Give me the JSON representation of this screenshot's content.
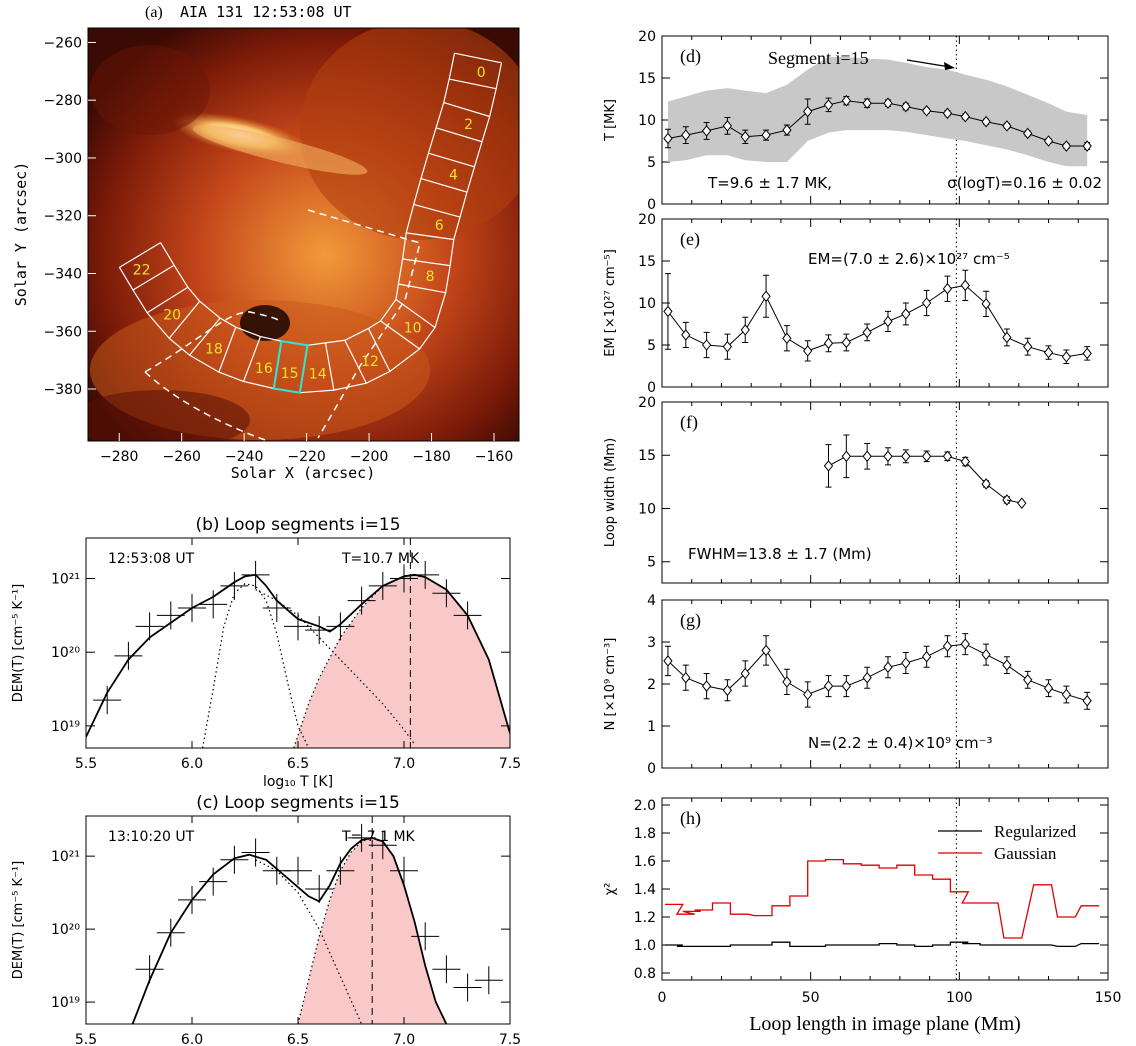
{
  "figure": {
    "panel_a": {
      "title": "(a) AIA 131 12:53:08 UT",
      "title_letter": "(a)",
      "title_rest": "AIA 131 12:53:08 UT",
      "xlabel": "Solar X (arcsec)",
      "ylabel": "Solar Y (arcsec)",
      "xticks": [
        "−280",
        "−260",
        "−240",
        "−220",
        "−200",
        "−180",
        "−160"
      ],
      "yticks": [
        "−260",
        "−280",
        "−300",
        "−320",
        "−340",
        "−360",
        "−380"
      ],
      "segment_labels": [
        "0",
        "2",
        "4",
        "6",
        "8",
        "10",
        "12",
        "14",
        "15",
        "16",
        "18",
        "20",
        "22"
      ],
      "highlight_color": "#2ee6d6",
      "label_color": "#f2e02a"
    },
    "panel_b": {
      "title": "(b) Loop segments i=15",
      "time": "12:53:08 UT",
      "temp": "T=10.7 MK"
    },
    "panel_c": {
      "title": "(c) Loop segments i=15",
      "time": "13:10:20 UT",
      "temp": "T= 7.1 MK"
    },
    "dem_axes": {
      "ylabel": "DEM(T) [cm⁻⁵ K⁻¹]",
      "xlabel": "log₁₀ T [K]",
      "xticks": [
        "5.5",
        "6.0",
        "6.5",
        "7.0",
        "7.5"
      ],
      "yticks": [
        "10²¹",
        "10²⁰",
        "10¹⁹"
      ]
    },
    "panel_d": {
      "letter": "(d)",
      "ylabel": "T [MK]",
      "yticks": [
        "20",
        "15",
        "10",
        "5",
        "0"
      ],
      "annotation": "Segment i=15",
      "stat_left": "T=9.6 ± 1.7 MK,",
      "stat_right": "σ(logT)=0.16 ± 0.02"
    },
    "panel_e": {
      "letter": "(e)",
      "ylabel": "EM [×10²⁷ cm⁻⁵]",
      "yticks": [
        "20",
        "15",
        "10",
        "5",
        "0"
      ],
      "stat": "EM=(7.0 ± 2.6)×10²⁷ cm⁻⁵"
    },
    "panel_f": {
      "letter": "(f)",
      "ylabel": "Loop width (Mm)",
      "yticks": [
        "20",
        "15",
        "10",
        "5"
      ],
      "stat": "FWHM=13.8 ± 1.7 (Mm)"
    },
    "panel_g": {
      "letter": "(g)",
      "ylabel": "N [×10⁹ cm⁻³]",
      "yticks": [
        "4",
        "3",
        "2",
        "1",
        "0"
      ],
      "stat": "N=(2.2 ± 0.4)×10⁹ cm⁻³"
    },
    "panel_h": {
      "letter": "(h)",
      "ylabel": "χ²",
      "yticks": [
        "2.0",
        "1.8",
        "1.6",
        "1.4",
        "1.2",
        "1.0",
        "0.8"
      ],
      "xticks": [
        "0",
        "50",
        "100",
        "150"
      ],
      "xlabel": "Loop length in image plane (Mm)",
      "legend": [
        "Regularized",
        "Gaussian"
      ],
      "colors": [
        "#000000",
        "#e00000"
      ]
    }
  },
  "chart_data": [
    {
      "type": "scatter",
      "panel": "a",
      "title": "(a) AIA 131 12:53:08 UT",
      "xlabel": "Solar X (arcsec)",
      "ylabel": "Solar Y (arcsec)",
      "xlim": [
        -290,
        -152
      ],
      "ylim": [
        -398,
        -255
      ],
      "segment_labels": [
        "0",
        "2",
        "4",
        "6",
        "8",
        "10",
        "12",
        "14",
        "15",
        "16",
        "18",
        "20",
        "22"
      ]
    },
    {
      "type": "line",
      "panel": "b",
      "title": "(b) Loop segments i=15",
      "xlabel": "log10 T [K]",
      "ylabel": "DEM(T) [cm-5 K-1]",
      "xlim": [
        5.5,
        7.5
      ],
      "ylim_log10": [
        18.7,
        21.55
      ],
      "peak_logT": 7.03,
      "series": [
        {
          "x": [
            5.5,
            5.6,
            5.7,
            5.8,
            5.9,
            6.0,
            6.1,
            6.2,
            6.25,
            6.3,
            6.35,
            6.4,
            6.5,
            6.6,
            6.65,
            6.7,
            6.8,
            6.9,
            7.0,
            7.05,
            7.1,
            7.2,
            7.3,
            7.4,
            7.5
          ],
          "log10_values": [
            18.85,
            19.45,
            19.9,
            20.2,
            20.4,
            20.6,
            20.75,
            20.95,
            21.03,
            21.05,
            20.9,
            20.7,
            20.45,
            20.35,
            20.28,
            20.38,
            20.65,
            20.9,
            21.03,
            21.05,
            21.02,
            20.85,
            20.5,
            19.9,
            18.9
          ]
        },
        {
          "x": [
            6.05,
            6.1,
            6.15,
            6.2,
            6.25,
            6.3,
            6.35,
            6.4,
            6.45,
            6.5,
            6.55
          ],
          "log10_values": [
            18.7,
            19.5,
            20.35,
            20.8,
            20.93,
            20.9,
            20.7,
            20.25,
            19.6,
            19.0,
            18.7
          ]
        },
        {
          "x": [
            6.48,
            6.55,
            6.6,
            6.7,
            6.8,
            6.9,
            7.0,
            7.03,
            7.1,
            7.2,
            7.3,
            7.4,
            7.5
          ],
          "log10_values": [
            18.7,
            19.3,
            19.65,
            20.2,
            20.6,
            20.9,
            21.03,
            21.05,
            21.02,
            20.85,
            20.5,
            19.9,
            18.9
          ]
        },
        {
          "x": [
            6.3,
            6.4,
            6.5,
            6.6,
            6.7,
            6.8,
            6.9,
            7.0,
            7.05
          ],
          "log10_values": [
            20.85,
            20.7,
            20.5,
            20.2,
            19.9,
            19.6,
            19.3,
            18.95,
            18.75
          ]
        }
      ],
      "error_points": {
        "x": [
          5.6,
          5.7,
          5.8,
          5.9,
          6.0,
          6.1,
          6.2,
          6.3,
          6.4,
          6.5,
          6.6,
          6.7,
          6.8,
          6.9,
          7.0,
          7.1,
          7.2,
          7.3
        ],
        "log10_values": [
          19.35,
          19.95,
          20.35,
          20.5,
          20.6,
          20.65,
          20.9,
          21.05,
          20.6,
          20.35,
          20.3,
          20.35,
          20.7,
          20.9,
          21.0,
          21.05,
          20.8,
          20.5
        ]
      }
    },
    {
      "type": "line",
      "panel": "c",
      "title": "(c) Loop segments i=15",
      "xlabel": "log10 T [K]",
      "ylabel": "DEM(T) [cm-5 K-1]",
      "xlim": [
        5.5,
        7.5
      ],
      "ylim_log10": [
        18.7,
        21.55
      ],
      "peak_logT": 6.85,
      "series": [
        {
          "x": [
            5.72,
            5.8,
            5.9,
            6.0,
            6.1,
            6.2,
            6.27,
            6.35,
            6.45,
            6.55,
            6.6,
            6.65,
            6.7,
            6.75,
            6.8,
            6.85,
            6.9,
            6.95,
            7.0,
            7.05,
            7.1,
            7.15,
            7.2
          ],
          "log10_values": [
            18.7,
            19.3,
            19.95,
            20.4,
            20.75,
            20.97,
            21.02,
            20.95,
            20.7,
            20.45,
            20.38,
            20.6,
            20.9,
            21.1,
            21.22,
            21.25,
            21.2,
            21.0,
            20.6,
            20.1,
            19.5,
            19.0,
            18.7
          ]
        },
        {
          "x": [
            6.5,
            6.55,
            6.6,
            6.65,
            6.7,
            6.75,
            6.8,
            6.85,
            6.9,
            6.95,
            7.0,
            7.05,
            7.1,
            7.15,
            7.2
          ],
          "log10_values": [
            18.7,
            19.3,
            19.9,
            20.4,
            20.8,
            21.05,
            21.2,
            21.25,
            21.2,
            21.0,
            20.6,
            20.1,
            19.5,
            19.0,
            18.7
          ]
        },
        {
          "x": [
            6.3,
            6.4,
            6.5,
            6.6,
            6.7,
            6.8
          ],
          "log10_values": [
            20.95,
            20.8,
            20.5,
            20.0,
            19.35,
            18.7
          ]
        }
      ],
      "error_points": {
        "x": [
          5.8,
          5.9,
          6.0,
          6.1,
          6.2,
          6.3,
          6.4,
          6.5,
          6.6,
          6.7,
          6.8,
          6.9,
          7.0,
          7.1,
          7.2,
          7.3,
          7.4
        ],
        "log10_values": [
          19.45,
          19.95,
          20.4,
          20.65,
          20.95,
          21.05,
          20.8,
          20.8,
          20.55,
          20.8,
          21.25,
          21.15,
          20.8,
          19.9,
          19.45,
          19.2,
          19.3
        ]
      }
    },
    {
      "type": "line",
      "panel": "d",
      "ylabel": "T [MK]",
      "xlim": [
        0,
        150
      ],
      "ylim": [
        0,
        20
      ],
      "marker_x": 99,
      "x": [
        2,
        8,
        15,
        22,
        28,
        35,
        42,
        49,
        56,
        62,
        69,
        76,
        82,
        89,
        96,
        102,
        109,
        116,
        123,
        130,
        136,
        143
      ],
      "series": [
        {
          "values": [
            7.8,
            8.2,
            8.7,
            9.3,
            8.0,
            8.2,
            8.8,
            11.0,
            11.8,
            12.3,
            12.0,
            12.0,
            11.6,
            11.1,
            10.8,
            10.4,
            9.8,
            9.3,
            8.4,
            7.5,
            6.9,
            6.9
          ]
        },
        {
          "values": [
            12.2,
            12.8,
            13.5,
            13.8,
            13.5,
            13.2,
            14.2,
            16.0,
            17.5,
            17.5,
            17.3,
            17.2,
            16.8,
            16.3,
            16.0,
            15.4,
            14.8,
            14.0,
            13.0,
            12.0,
            11.0,
            10.6
          ]
        },
        {
          "values": [
            5.0,
            5.2,
            5.8,
            5.8,
            5.2,
            5.0,
            5.0,
            7.5,
            8.5,
            8.8,
            8.8,
            8.8,
            8.6,
            8.2,
            7.8,
            7.5,
            7.0,
            6.5,
            5.8,
            5.0,
            4.5,
            4.5
          ]
        }
      ],
      "errors": [
        1.1,
        1.0,
        1.0,
        1.0,
        0.8,
        0.6,
        0.6,
        1.5,
        0.8,
        0.5,
        0.5,
        0.4,
        0.4,
        0.3,
        0.3,
        0.3,
        0.3,
        0.3,
        0.3,
        0.3,
        0.3,
        0.4
      ]
    },
    {
      "type": "line",
      "panel": "e",
      "ylabel": "EM [x10^27 cm^-5]",
      "xlim": [
        0,
        150
      ],
      "ylim": [
        0,
        20
      ],
      "marker_x": 99,
      "x": [
        2,
        8,
        15,
        22,
        28,
        35,
        42,
        49,
        56,
        62,
        69,
        76,
        82,
        89,
        96,
        102,
        109,
        116,
        123,
        130,
        136,
        143
      ],
      "values": [
        9.0,
        6.2,
        5.0,
        4.8,
        6.8,
        10.8,
        5.8,
        4.3,
        5.2,
        5.3,
        6.5,
        7.8,
        8.7,
        10.0,
        11.7,
        12.1,
        9.9,
        5.9,
        4.8,
        4.1,
        3.6,
        4.0
      ],
      "errors": [
        4.5,
        1.5,
        1.5,
        1.5,
        1.5,
        2.5,
        1.5,
        1.2,
        1.0,
        1.0,
        1.0,
        1.2,
        1.3,
        1.5,
        1.5,
        1.8,
        1.5,
        1.0,
        1.0,
        0.8,
        0.8,
        0.8
      ]
    },
    {
      "type": "line",
      "panel": "f",
      "ylabel": "Loop width (Mm)",
      "xlim": [
        0,
        150
      ],
      "ylim": [
        3,
        20
      ],
      "marker_x": 99,
      "x": [
        56,
        62,
        69,
        76,
        82,
        89,
        96,
        102,
        109,
        116
      ],
      "values": [
        14.0,
        14.9,
        14.9,
        14.9,
        14.9,
        14.9,
        14.9,
        14.4,
        12.3,
        10.8
      ],
      "errors": [
        2.0,
        2.0,
        1.2,
        0.8,
        0.6,
        0.5,
        0.4,
        0.4,
        0.3,
        0.3
      ],
      "extra_point": {
        "x": 121,
        "value": 10.5,
        "error": 0.3
      }
    },
    {
      "type": "line",
      "panel": "g",
      "ylabel": "N [x10^9 cm^-3]",
      "xlim": [
        0,
        150
      ],
      "ylim": [
        0,
        4
      ],
      "marker_x": 99,
      "x": [
        2,
        8,
        15,
        22,
        28,
        35,
        42,
        49,
        56,
        62,
        69,
        76,
        82,
        89,
        96,
        102,
        109,
        116,
        123,
        130,
        136,
        143
      ],
      "values": [
        2.55,
        2.15,
        1.95,
        1.85,
        2.25,
        2.8,
        2.05,
        1.75,
        1.95,
        1.95,
        2.15,
        2.4,
        2.5,
        2.65,
        2.9,
        2.95,
        2.7,
        2.45,
        2.1,
        1.9,
        1.75,
        1.6
      ],
      "errors": [
        0.35,
        0.3,
        0.3,
        0.25,
        0.3,
        0.35,
        0.3,
        0.3,
        0.25,
        0.25,
        0.25,
        0.25,
        0.25,
        0.25,
        0.25,
        0.25,
        0.25,
        0.2,
        0.2,
        0.2,
        0.2,
        0.2
      ]
    },
    {
      "type": "line",
      "panel": "h",
      "xlabel": "Loop length in image plane (Mm)",
      "ylabel": "χ²",
      "xlim": [
        0,
        150
      ],
      "ylim": [
        0.75,
        2.05
      ],
      "marker_x": 99,
      "legend_placement": "top-right",
      "series": [
        {
          "name": "Regularized",
          "x": [
            4,
            8,
            10,
            14,
            20,
            26,
            34,
            40,
            46,
            52,
            58,
            64,
            70,
            76,
            82,
            88,
            94,
            100,
            104,
            110,
            118,
            128,
            136,
            144
          ],
          "values": [
            1.0,
            0.99,
            0.99,
            0.99,
            0.99,
            1.0,
            1.0,
            1.02,
            0.99,
            0.99,
            1.0,
            1.0,
            1.0,
            1.01,
            1.0,
            0.99,
            1.0,
            1.02,
            1.01,
            1.0,
            1.0,
            1.0,
            0.99,
            1.01
          ]
        },
        {
          "name": "Gaussian",
          "x": [
            4,
            8,
            10,
            14,
            20,
            26,
            34,
            40,
            46,
            52,
            58,
            64,
            70,
            76,
            82,
            88,
            94,
            100,
            104,
            110,
            118,
            128,
            136,
            144
          ],
          "values": [
            1.29,
            1.22,
            1.24,
            1.25,
            1.3,
            1.22,
            1.21,
            1.28,
            1.35,
            1.6,
            1.61,
            1.58,
            1.57,
            1.55,
            1.57,
            1.5,
            1.47,
            1.38,
            1.3,
            1.3,
            1.05,
            1.43,
            1.2,
            1.28
          ]
        }
      ]
    }
  ]
}
